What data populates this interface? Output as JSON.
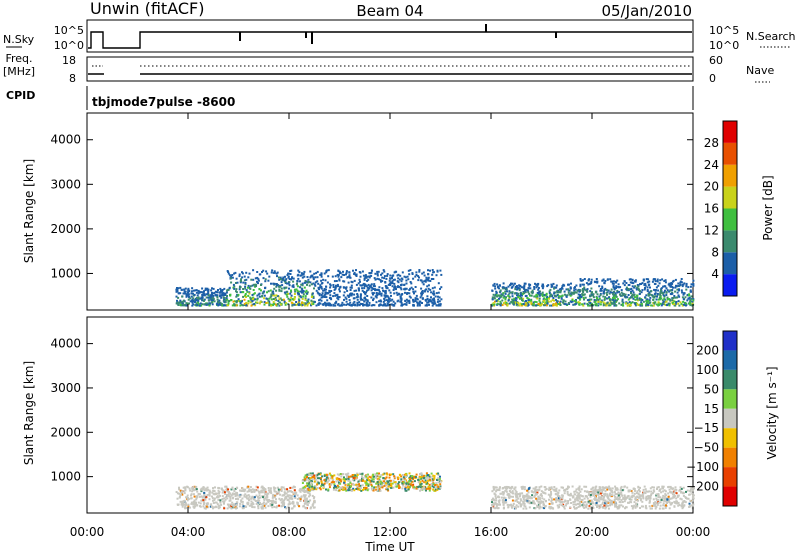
{
  "header": {
    "station": "Unwin (fitACF)",
    "beam": "Beam 04",
    "date": "05/Jan/2010"
  },
  "nsky": {
    "label": "N.Sky",
    "ticks": [
      "10^5",
      "10^0"
    ],
    "right_label": "N.Search",
    "right_ticks": [
      "10^5",
      "10^0"
    ]
  },
  "freq": {
    "label_line1": "Freq.",
    "label_line2": "[MHz]",
    "ticks": [
      "18",
      "8"
    ],
    "right_label": "Nave",
    "right_ticks": [
      "60",
      "0"
    ]
  },
  "cpid": {
    "label": "CPID",
    "value": "tbjmode7pulse  -8600"
  },
  "time_axis": {
    "label": "Time UT",
    "ticks": [
      "00:00",
      "04:00",
      "08:00",
      "12:00",
      "16:00",
      "20:00",
      "00:00"
    ]
  },
  "power_panel": {
    "ylabel": "Slant Range [km]",
    "yticks": [
      "1000",
      "2000",
      "3000",
      "4000"
    ],
    "colorbar_label": "Power [dB]",
    "colorbar_ticks": [
      "4",
      "8",
      "12",
      "16",
      "20",
      "24",
      "28"
    ],
    "colors": [
      "#0a1cf0",
      "#1c5fa8",
      "#3b8a6e",
      "#3fbf3f",
      "#c9d21a",
      "#f0a000",
      "#e85000",
      "#e00000"
    ]
  },
  "velocity_panel": {
    "ylabel": "Slant Range [km]",
    "yticks": [
      "1000",
      "2000",
      "3000",
      "4000"
    ],
    "colorbar_label": "Velocity [m s⁻¹]",
    "colorbar_ticks": [
      "200",
      "100",
      "50",
      "15",
      "−15",
      "−50",
      "−100",
      "−200"
    ],
    "colors": [
      "#2030c8",
      "#1c6aa8",
      "#3a8a6a",
      "#7ad040",
      "#c8c8c0",
      "#f0c000",
      "#f08000",
      "#e84000",
      "#e00000"
    ]
  },
  "chart_data": [
    {
      "type": "heatmap",
      "title": "Power [dB]",
      "xlabel": "Time UT",
      "ylabel": "Slant Range [km]",
      "xlim": [
        "00:00",
        "24:00"
      ],
      "ylim": [
        180,
        4600
      ],
      "zlim": [
        0,
        30
      ],
      "echo_regions": [
        {
          "start": "03:30",
          "end": "05:30",
          "range_km": [
            300,
            700
          ],
          "power_db": [
            4,
            16
          ]
        },
        {
          "start": "05:30",
          "end": "09:00",
          "range_km": [
            300,
            1100
          ],
          "power_db": [
            4,
            24
          ]
        },
        {
          "start": "09:00",
          "end": "14:00",
          "range_km": [
            300,
            1100
          ],
          "power_db": [
            4,
            8
          ]
        },
        {
          "start": "16:00",
          "end": "19:30",
          "range_km": [
            300,
            800
          ],
          "power_db": [
            4,
            24
          ]
        },
        {
          "start": "19:30",
          "end": "24:00",
          "range_km": [
            300,
            900
          ],
          "power_db": [
            4,
            20
          ]
        }
      ]
    },
    {
      "type": "heatmap",
      "title": "Velocity [m s-1]",
      "xlabel": "Time UT",
      "ylabel": "Slant Range [km]",
      "xlim": [
        "00:00",
        "24:00"
      ],
      "ylim": [
        180,
        4600
      ],
      "zlim": [
        -250,
        250
      ],
      "echo_regions": [
        {
          "start": "03:30",
          "end": "09:00",
          "range_km": [
            300,
            800
          ],
          "velocity_ms": [
            -15,
            15
          ]
        },
        {
          "start": "08:30",
          "end": "14:00",
          "range_km": [
            700,
            1100
          ],
          "velocity_ms": [
            -50,
            50
          ]
        },
        {
          "start": "16:00",
          "end": "24:00",
          "range_km": [
            300,
            800
          ],
          "velocity_ms": [
            -15,
            15
          ]
        }
      ]
    }
  ]
}
